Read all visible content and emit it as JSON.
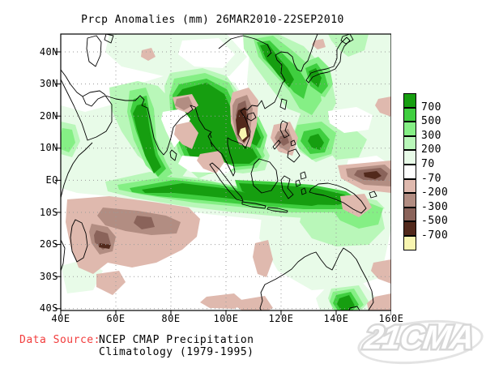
{
  "title": "Prcp Anomalies (mm) 26MAR2010-22SEP2010",
  "axes": {
    "lat_labels": [
      "40N",
      "30N",
      "20N",
      "10N",
      "EQ",
      "10S",
      "20S",
      "30S",
      "40S"
    ],
    "lon_labels": [
      "40E",
      "60E",
      "80E",
      "100E",
      "120E",
      "140E",
      "160E"
    ]
  },
  "legend": {
    "labels": [
      "700",
      "500",
      "300",
      "200",
      "70",
      "-70",
      "-200",
      "-300",
      "-500",
      "-700"
    ],
    "colors": [
      "#169e10",
      "#3fce3f",
      "#85ef85",
      "#b9f7b9",
      "#e8fbe8",
      "#ffffff",
      "#dfb9ae",
      "#b28d82",
      "#8a635a",
      "#52291c",
      "#f8f5b0"
    ]
  },
  "footer": {
    "label": "Data Source:",
    "label_color": "#f23c3c",
    "line1": "NCEP CMAP Precipitation",
    "line2": "Climatology (1979-1995)"
  },
  "watermark": "21CMA",
  "chart_data": {
    "type": "heatmap",
    "subtype": "filled-contour geographic map",
    "title": "Prcp Anomalies (mm) 26MAR2010-22SEP2010",
    "variable": "Precipitation anomaly",
    "units": "mm",
    "period": "26MAR2010-22SEP2010",
    "climatology_base": "1979-1995",
    "x": {
      "label": "longitude",
      "ticks": [
        "40E",
        "60E",
        "80E",
        "100E",
        "120E",
        "140E",
        "160E"
      ],
      "range_deg_east": [
        40,
        160
      ]
    },
    "y": {
      "label": "latitude",
      "ticks": [
        "40N",
        "30N",
        "20N",
        "10N",
        "EQ",
        "10S",
        "20S",
        "30S",
        "40S"
      ],
      "range_deg_north": [
        -40,
        45
      ]
    },
    "grid": "dotted gray graticule, 10 deg latitude x 20 deg longitude",
    "legend_position": "right",
    "contour_levels": [
      -700,
      -500,
      -300,
      -200,
      -70,
      70,
      200,
      300,
      500,
      700
    ],
    "palette": [
      {
        "range": "> 700",
        "color": "#169e10"
      },
      {
        "range": "500 to 700",
        "color": "#3fce3f"
      },
      {
        "range": "300 to 500",
        "color": "#85ef85"
      },
      {
        "range": "200 to 300",
        "color": "#b9f7b9"
      },
      {
        "range": "70 to 200",
        "color": "#e8fbe8"
      },
      {
        "range": "-70 to 70",
        "color": "#ffffff"
      },
      {
        "range": "-200 to -70",
        "color": "#dfb9ae"
      },
      {
        "range": "-300 to -200",
        "color": "#b28d82"
      },
      {
        "range": "-500 to -300",
        "color": "#8a635a"
      },
      {
        "range": "-700 to -500",
        "color": "#52291c"
      },
      {
        "range": "< -700",
        "color": "#f8f5b0"
      }
    ],
    "features": [
      {
        "region": "Arabian Sea off west India (~65-72E, 0-20N)",
        "anomaly_mm": "> 700"
      },
      {
        "region": "Bay of Bengal / Bangladesh / Myanmar / Yunnan",
        "anomaly_mm": "> 700"
      },
      {
        "region": "Equatorial Indian Ocean band (~60-105E, 0-10S)",
        "anomaly_mm": "> 700"
      },
      {
        "region": "Indonesia through New Guinea (~100-145E, ~0-8S)",
        "anomaly_mm": "> 700"
      },
      {
        "region": "South China Sea (~106-112E, 8-18N)",
        "anomaly_mm": "> 700"
      },
      {
        "region": "East China Sea / Korea Strait / south of Japan",
        "anomaly_mm": "300 to 700"
      },
      {
        "region": "Western Pacific east of Taiwan (~125-135E, 10-20N)",
        "anomaly_mm": "300 to 500"
      },
      {
        "region": "Small maximum east of Madagascar (~50E, 15S)",
        "anomaly_mm": "> 700"
      },
      {
        "region": "South of Australia near 140E at 40S",
        "anomaly_mm": "> 700"
      },
      {
        "region": "Indochina - Vietnam/Laos core",
        "anomaly_mm": "< -700 (pale-yellow core inside dark brown)"
      },
      {
        "region": "Subtropical South Indian Ocean (~50-105E, 8-28S)",
        "anomaly_mm": "-200 to -500"
      },
      {
        "region": "Philippines",
        "anomaly_mm": "-200 to -500"
      },
      {
        "region": "Solomon Sea / 150-160E near 0-5S",
        "anomaly_mm": "-300 to -500"
      },
      {
        "region": "South coast of New Guinea",
        "anomaly_mm": "-70 to -200"
      },
      {
        "region": "North Sumatra",
        "anomaly_mm": "-70 to -200"
      },
      {
        "region": "Central India streaks",
        "anomaly_mm": "-70 to -300"
      },
      {
        "region": "West and south coasts of Australia",
        "anomaly_mm": "-70 to -200"
      },
      {
        "region": "Northern Australia",
        "anomaly_mm": "70 to 300"
      }
    ]
  }
}
